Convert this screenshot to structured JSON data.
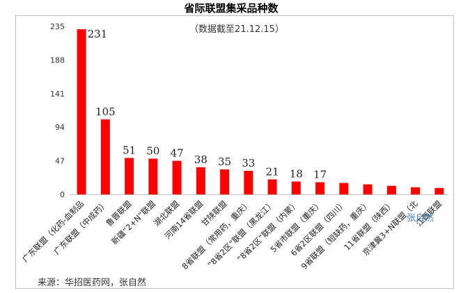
{
  "chart_data": {
    "type": "bar",
    "title": "省际联盟集采品种数",
    "subtitle": "（数据截至21.12.15）",
    "categories": [
      "广东联盟（化药-血制品",
      "广东联盟（中成药）",
      "鲁晋联盟",
      "新疆“2+N”联盟",
      "湖北联盟",
      "河南14省联盟",
      "甘陕联盟",
      "8省联盟（常用药，重庆）",
      "“8省2区”联盟（黑龙江）",
      "“8省2区”联盟（内蒙）",
      "5省市联盟（重庆）",
      "6省2区联盟（四川）",
      "9省联盟（短缺药，重庆）",
      "11省联盟（陕西）",
      "京津冀3+N联盟（北",
      "江西联盟"
    ],
    "values": [
      231,
      105,
      51,
      50,
      47,
      38,
      35,
      33,
      21,
      18,
      17,
      16,
      14,
      12,
      10,
      9
    ],
    "data_labels": [
      "231",
      "105",
      "51",
      "50",
      "47",
      "38",
      "35",
      "33",
      "21",
      "18",
      "17",
      "",
      "",
      "",
      "",
      ""
    ],
    "yticks": [
      "0",
      "47",
      "94",
      "141",
      "188",
      "235"
    ],
    "ylim": [
      0,
      235
    ],
    "bar_color": "#ff0000",
    "grid": false,
    "source": "来源：华招医药网，张自然",
    "watermark": "张自然"
  }
}
